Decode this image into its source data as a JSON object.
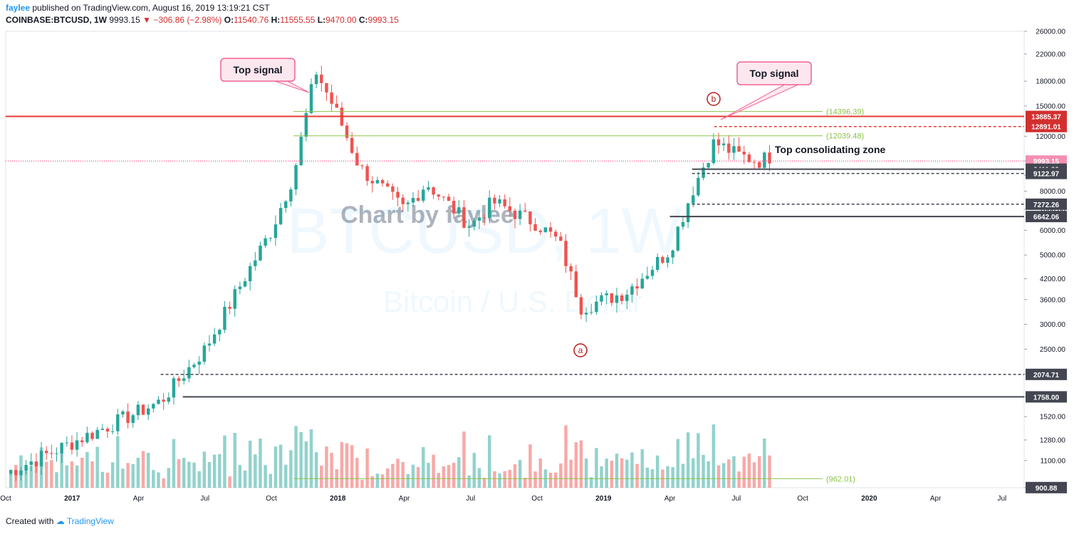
{
  "header": {
    "author": "faylee",
    "published_text": "published on TradingView.com, August 16, 2019 13:19:21 CST",
    "symbol_line": {
      "symbol": "COINBASE:BTCUSD, 1W",
      "price": "9993.15",
      "change": "−306.86 (−2.98%)",
      "o_label": "O:",
      "o": "11540.76",
      "h_label": "H:",
      "h": "11555.55",
      "l_label": "L:",
      "l": "9470.00",
      "c_label": "C:",
      "c": "9993.15"
    }
  },
  "footer": {
    "created_with": "Created with",
    "brand": "TradingView"
  },
  "watermark": {
    "line1": "Chart by faylee",
    "line2": "BTCUSD, 1W",
    "line3": "Bitcoin / U.S. Dollar"
  },
  "colors": {
    "up": "#26a69a",
    "down": "#ef5350",
    "hline_red": "#e53935",
    "fib": "#8bc34a",
    "pink": "#f06292",
    "grid": "#e0e3eb"
  },
  "chart_data": {
    "type": "candlestick",
    "scale": "log",
    "ylim": [
      900,
      26000
    ],
    "yticks": [
      26000,
      22000,
      18000,
      15000,
      12000,
      10000,
      9000,
      8000,
      7000,
      6000,
      5000,
      4200,
      3600,
      3000,
      2500,
      2080,
      1758,
      1520,
      1280,
      1100,
      900
    ],
    "xticks": [
      "Oct",
      "2017",
      "Apr",
      "Jul",
      "Oct",
      "2018",
      "Apr",
      "Jul",
      "Oct",
      "2019",
      "Apr",
      "Jul",
      "Oct",
      "2020",
      "Apr",
      "Jul"
    ],
    "price_labels": [
      {
        "text": "13885.37",
        "value": 13885.37,
        "style": "red"
      },
      {
        "text": "12891.01",
        "value": 12891.01,
        "style": "red"
      },
      {
        "text": "9993.15",
        "value": 9993.15,
        "style": "pink"
      },
      {
        "text": "9411.82",
        "value": 9411.82,
        "style": "dark"
      },
      {
        "text": "9122.97",
        "value": 9122.97,
        "style": "dark"
      },
      {
        "text": "7272.26",
        "value": 7272.26,
        "style": "dark"
      },
      {
        "text": "6642.06",
        "value": 6642.06,
        "style": "dark"
      },
      {
        "text": "2074.71",
        "value": 2074.71,
        "style": "dark"
      },
      {
        "text": "1758.00",
        "value": 1758.0,
        "style": "dark"
      },
      {
        "text": "900.88",
        "value": 900.88,
        "style": "dark"
      }
    ],
    "levels": [
      {
        "value": 13885.37,
        "style": "solid",
        "color": "#e53935",
        "from": "start"
      },
      {
        "value": 12891.01,
        "style": "dashed",
        "color": "#e53935",
        "from": "2019-06"
      },
      {
        "value": 9993.15,
        "style": "dotted",
        "color": "#f06292",
        "from": "start"
      },
      {
        "value": 9411.82,
        "style": "solid",
        "color": "#434651",
        "from": "2019-05"
      },
      {
        "value": 9122.97,
        "style": "dashed",
        "color": "#434651",
        "from": "2019-05"
      },
      {
        "value": 7272.26,
        "style": "dashed",
        "color": "#434651",
        "from": "2019-05"
      },
      {
        "value": 6642.06,
        "style": "solid",
        "color": "#434651",
        "from": "2019-04"
      },
      {
        "value": 2074.71,
        "style": "dashed",
        "color": "#434651",
        "from": "2017-05"
      },
      {
        "value": 1758.0,
        "style": "solid",
        "color": "#434651",
        "from": "2017-06"
      }
    ],
    "fib_levels": [
      {
        "text": "(14396.39)",
        "value": 14396.39
      },
      {
        "text": "(12039.48)",
        "value": 12039.48
      },
      {
        "text": "(962.01)",
        "value": 962.01
      }
    ],
    "annotations": [
      {
        "text": "Top signal",
        "points_to": "2017-12 high"
      },
      {
        "text": "Top signal",
        "points_to": "2019-06 high"
      },
      {
        "text": "Top consolidating zone"
      },
      {
        "text": "a",
        "marker": "2018-12 low"
      },
      {
        "text": "b",
        "marker": "2019-06 high"
      }
    ],
    "anchors": [
      {
        "value": 1000,
        "t": "2016-10"
      },
      {
        "value": 1700,
        "t": "2017-05"
      },
      {
        "value": 2500,
        "t": "2017-07"
      },
      {
        "value": 4500,
        "t": "2017-09"
      },
      {
        "value": 6000,
        "t": "2017-10"
      },
      {
        "value": 9000,
        "t": "2017-11"
      },
      {
        "value": 19500,
        "t": "2017-12"
      },
      {
        "value": 14000,
        "t": "2018-01"
      },
      {
        "value": 9500,
        "t": "2018-02"
      },
      {
        "value": 7000,
        "t": "2018-04"
      },
      {
        "value": 8500,
        "t": "2018-05"
      },
      {
        "value": 6200,
        "t": "2018-07"
      },
      {
        "value": 7400,
        "t": "2018-08"
      },
      {
        "value": 6300,
        "t": "2018-10"
      },
      {
        "value": 5500,
        "t": "2018-11"
      },
      {
        "value": 3400,
        "t": "2018-12"
      },
      {
        "value": 3800,
        "t": "2019-02"
      },
      {
        "value": 5200,
        "t": "2019-04"
      },
      {
        "value": 8000,
        "t": "2019-05"
      },
      {
        "value": 11500,
        "t": "2019-06"
      },
      {
        "value": 10500,
        "t": "2019-07"
      },
      {
        "value": 9993.15,
        "t": "2019-08"
      }
    ]
  }
}
